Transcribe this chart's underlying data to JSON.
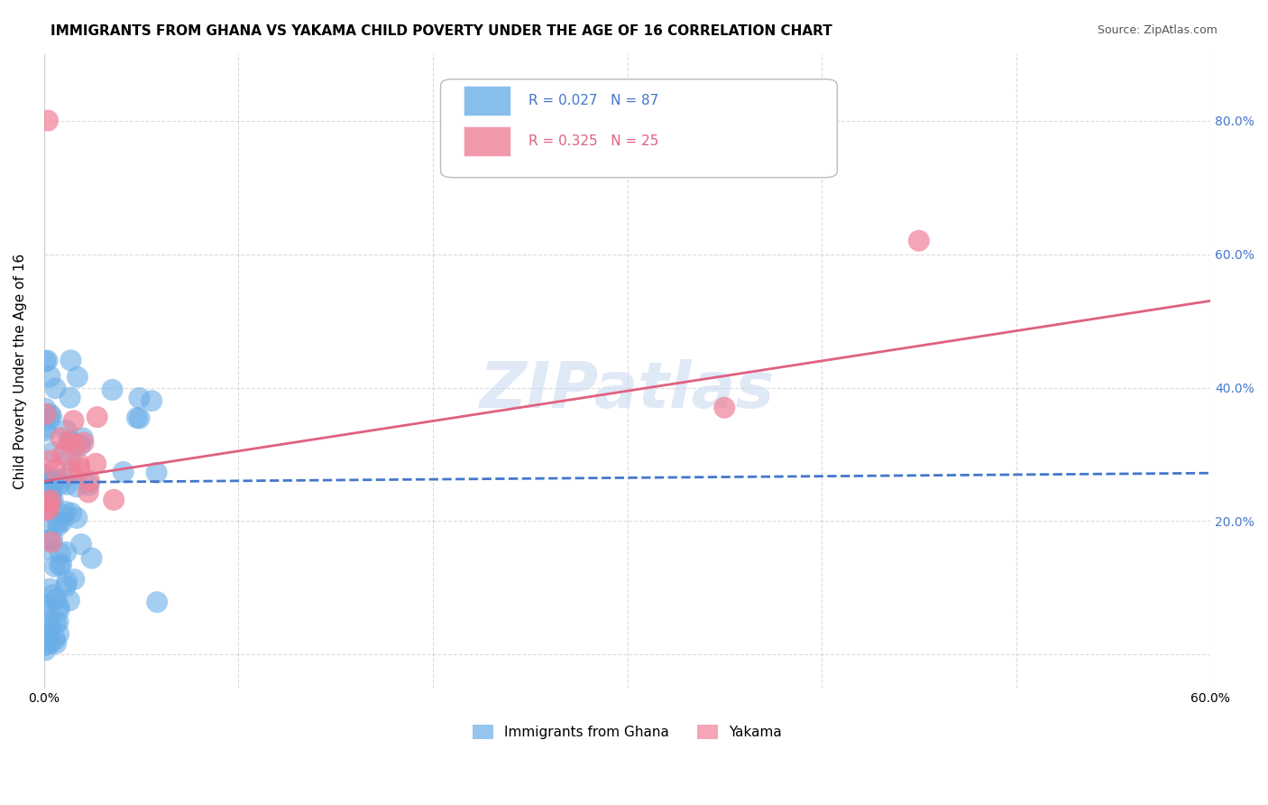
{
  "title": "IMMIGRANTS FROM GHANA VS YAKAMA CHILD POVERTY UNDER THE AGE OF 16 CORRELATION CHART",
  "source": "Source: ZipAtlas.com",
  "ylabel": "Child Poverty Under the Age of 16",
  "watermark": "ZIPatlas",
  "legend_entries": [
    {
      "label": "Immigrants from Ghana",
      "R": 0.027,
      "N": 87
    },
    {
      "label": "Yakama",
      "R": 0.325,
      "N": 25
    }
  ],
  "xlim": [
    0.0,
    0.6
  ],
  "ylim": [
    -0.05,
    0.9
  ],
  "yticks": [
    0.0,
    0.2,
    0.4,
    0.6,
    0.8
  ],
  "ytick_labels": [
    "",
    "20.0%",
    "40.0%",
    "60.0%",
    "80.0%"
  ],
  "xticks": [
    0.0,
    0.1,
    0.2,
    0.3,
    0.4,
    0.5,
    0.6
  ],
  "xtick_labels": [
    "0.0%",
    "",
    "",
    "",
    "",
    "",
    "60.0%"
  ],
  "ghana_line_x": [
    0.0,
    0.6
  ],
  "ghana_line_y": [
    0.258,
    0.272
  ],
  "yakama_line_x": [
    0.0,
    0.6
  ],
  "yakama_line_y": [
    0.26,
    0.53
  ],
  "ghana_color": "#6aaee8",
  "yakama_color": "#f08098",
  "ghana_line_color": "#4477cc",
  "yakama_line_color": "#e06080",
  "title_fontsize": 11,
  "axis_label_fontsize": 11,
  "tick_fontsize": 10
}
